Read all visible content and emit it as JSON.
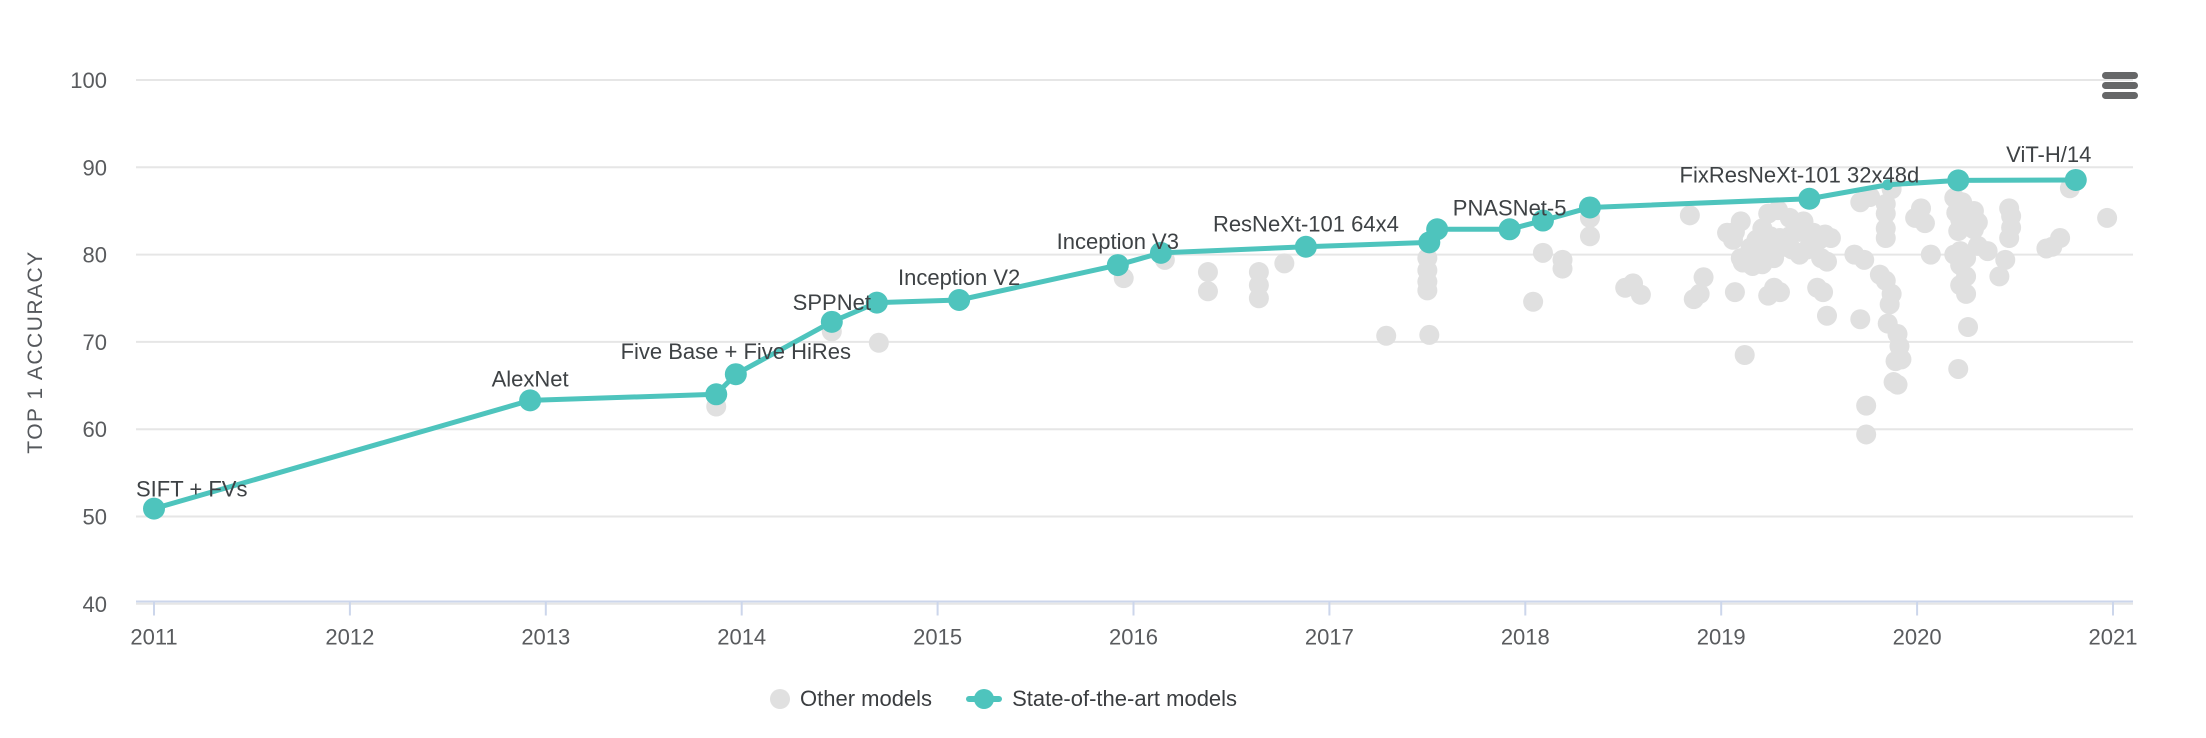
{
  "legend": {
    "other_label": "Other models",
    "sota_label": "State-of-the-art models"
  },
  "menu": {
    "name": "chart context menu (export)"
  },
  "colors": {
    "sota": "#4ec4bd",
    "other": "#e0e0e0",
    "grid": "#e6e6e6",
    "axis": "#ccd6eb",
    "tick_text": "#595b5e",
    "label_text": "#3e4245"
  },
  "chart_data": {
    "type": "line",
    "title": "",
    "xlabel": "",
    "ylabel": "TOP 1 ACCURACY",
    "xlim": [
      2010.91,
      2021.1
    ],
    "ylim": [
      40,
      100
    ],
    "x_ticks": [
      2011,
      2012,
      2013,
      2014,
      2015,
      2016,
      2017,
      2018,
      2019,
      2020,
      2021
    ],
    "y_ticks": [
      40,
      50,
      60,
      70,
      80,
      90,
      100
    ],
    "grid": "horizontal",
    "legend_position": "bottom",
    "series": [
      {
        "name": "State-of-the-art models",
        "type": "line+marker",
        "points": [
          {
            "x": 2011.0,
            "y": 50.9,
            "label": "SIFT + FVs",
            "label_dx": 35,
            "label_dy": -20
          },
          {
            "x": 2012.92,
            "y": 63.3,
            "label": "AlexNet",
            "label_dy": -22
          },
          {
            "x": 2013.87,
            "y": 64.0
          },
          {
            "x": 2013.97,
            "y": 66.3,
            "label": "Five Base + Five HiRes",
            "label_dy": -23
          },
          {
            "x": 2014.46,
            "y": 72.3,
            "label": "SPPNet",
            "label_dy": -20
          },
          {
            "x": 2014.69,
            "y": 74.5
          },
          {
            "x": 2015.11,
            "y": 74.8,
            "label": "Inception V2",
            "label_dy": -23
          },
          {
            "x": 2015.92,
            "y": 78.8,
            "label": "Inception V3",
            "label_dy": -24
          },
          {
            "x": 2016.14,
            "y": 80.2
          },
          {
            "x": 2016.88,
            "y": 80.9,
            "label": "ResNeXt-101 64x4",
            "label_dy": -23
          },
          {
            "x": 2017.51,
            "y": 81.4
          },
          {
            "x": 2017.55,
            "y": 82.9
          },
          {
            "x": 2017.92,
            "y": 82.9,
            "label": "PNASNet-5",
            "label_dy": -22
          },
          {
            "x": 2018.09,
            "y": 83.9
          },
          {
            "x": 2018.33,
            "y": 85.4
          },
          {
            "x": 2019.45,
            "y": 86.4,
            "label": "FixResNeXt-101 32x48d",
            "label_dx": -10,
            "label_dy": -24
          },
          {
            "x": 2019.85,
            "y": 88.0,
            "small": true
          },
          {
            "x": 2020.21,
            "y": 88.5
          },
          {
            "x": 2020.81,
            "y": 88.55,
            "label": "ViT-H/14",
            "label_dx": -27,
            "label_dy": -26
          }
        ]
      },
      {
        "name": "Other models",
        "type": "scatter",
        "points": [
          [
            2013.87,
            62.6
          ],
          [
            2014.46,
            71.2
          ],
          [
            2014.7,
            69.9
          ],
          [
            2015.95,
            77.3
          ],
          [
            2016.16,
            79.4
          ],
          [
            2016.38,
            78.0
          ],
          [
            2016.38,
            75.8
          ],
          [
            2016.64,
            78.0
          ],
          [
            2016.64,
            76.5
          ],
          [
            2016.64,
            75.0
          ],
          [
            2016.77,
            79.0
          ],
          [
            2017.29,
            70.7
          ],
          [
            2017.5,
            79.6
          ],
          [
            2017.5,
            78.2
          ],
          [
            2017.5,
            76.9
          ],
          [
            2017.5,
            75.9
          ],
          [
            2017.51,
            70.8
          ],
          [
            2018.04,
            74.6
          ],
          [
            2018.09,
            80.2
          ],
          [
            2018.19,
            79.4
          ],
          [
            2018.19,
            78.4
          ],
          [
            2018.33,
            84.2
          ],
          [
            2018.33,
            82.1
          ],
          [
            2018.51,
            76.2
          ],
          [
            2018.55,
            76.7
          ],
          [
            2018.59,
            75.4
          ],
          [
            2018.84,
            84.5
          ],
          [
            2018.86,
            74.9
          ],
          [
            2018.89,
            75.5
          ],
          [
            2018.91,
            77.4
          ],
          [
            2019.03,
            82.5
          ],
          [
            2019.06,
            81.7
          ],
          [
            2019.07,
            82.6
          ],
          [
            2019.07,
            75.7
          ],
          [
            2019.1,
            83.8
          ],
          [
            2019.1,
            79.6
          ],
          [
            2019.11,
            79.1
          ],
          [
            2019.12,
            68.5
          ],
          [
            2019.15,
            80.8
          ],
          [
            2019.16,
            78.7
          ],
          [
            2019.18,
            81.7
          ],
          [
            2019.18,
            80.2
          ],
          [
            2019.21,
            83.0
          ],
          [
            2019.21,
            78.9
          ],
          [
            2019.24,
            84.7
          ],
          [
            2019.24,
            80.6
          ],
          [
            2019.24,
            75.3
          ],
          [
            2019.25,
            82.1
          ],
          [
            2019.27,
            79.6
          ],
          [
            2019.27,
            76.2
          ],
          [
            2019.29,
            85.1
          ],
          [
            2019.3,
            81.9
          ],
          [
            2019.3,
            75.7
          ],
          [
            2019.32,
            80.9
          ],
          [
            2019.35,
            84.2
          ],
          [
            2019.35,
            82.1
          ],
          [
            2019.36,
            80.6
          ],
          [
            2019.4,
            82.6
          ],
          [
            2019.4,
            80.0
          ],
          [
            2019.42,
            83.8
          ],
          [
            2019.44,
            80.6
          ],
          [
            2019.47,
            82.5
          ],
          [
            2019.49,
            76.2
          ],
          [
            2019.5,
            81.7
          ],
          [
            2019.51,
            79.6
          ],
          [
            2019.52,
            75.7
          ],
          [
            2019.53,
            82.3
          ],
          [
            2019.54,
            79.2
          ],
          [
            2019.54,
            73.0
          ],
          [
            2019.56,
            81.9
          ],
          [
            2019.68,
            80.0
          ],
          [
            2019.71,
            86.0
          ],
          [
            2019.71,
            72.6
          ],
          [
            2019.73,
            79.4
          ],
          [
            2019.74,
            62.7
          ],
          [
            2019.74,
            59.4
          ],
          [
            2019.76,
            86.6
          ],
          [
            2019.81,
            77.7
          ],
          [
            2019.84,
            85.8
          ],
          [
            2019.84,
            84.7
          ],
          [
            2019.84,
            83.0
          ],
          [
            2019.84,
            81.9
          ],
          [
            2019.84,
            77.0
          ],
          [
            2019.85,
            72.1
          ],
          [
            2019.86,
            74.3
          ],
          [
            2019.87,
            87.5
          ],
          [
            2019.87,
            75.5
          ],
          [
            2019.88,
            65.4
          ],
          [
            2019.89,
            67.8
          ],
          [
            2019.9,
            70.9
          ],
          [
            2019.9,
            65.1
          ],
          [
            2019.91,
            69.5
          ],
          [
            2019.92,
            68.0
          ],
          [
            2019.99,
            84.2
          ],
          [
            2020.02,
            85.3
          ],
          [
            2020.04,
            83.6
          ],
          [
            2020.07,
            80.0
          ],
          [
            2020.19,
            86.5
          ],
          [
            2020.19,
            80.0
          ],
          [
            2020.2,
            84.8
          ],
          [
            2020.21,
            82.7
          ],
          [
            2020.21,
            66.9
          ],
          [
            2020.22,
            84.0
          ],
          [
            2020.22,
            80.4
          ],
          [
            2020.22,
            78.8
          ],
          [
            2020.22,
            76.5
          ],
          [
            2020.23,
            86.0
          ],
          [
            2020.25,
            79.6
          ],
          [
            2020.25,
            77.5
          ],
          [
            2020.25,
            75.5
          ],
          [
            2020.26,
            71.7
          ],
          [
            2020.29,
            85.0
          ],
          [
            2020.29,
            82.9
          ],
          [
            2020.31,
            83.7
          ],
          [
            2020.31,
            81.0
          ],
          [
            2020.36,
            80.4
          ],
          [
            2020.42,
            77.5
          ],
          [
            2020.45,
            79.4
          ],
          [
            2020.47,
            85.3
          ],
          [
            2020.47,
            81.9
          ],
          [
            2020.48,
            84.4
          ],
          [
            2020.48,
            83.1
          ],
          [
            2020.66,
            80.7
          ],
          [
            2020.69,
            80.9
          ],
          [
            2020.73,
            81.9
          ],
          [
            2020.78,
            87.6
          ],
          [
            2020.97,
            84.2
          ]
        ]
      }
    ]
  }
}
